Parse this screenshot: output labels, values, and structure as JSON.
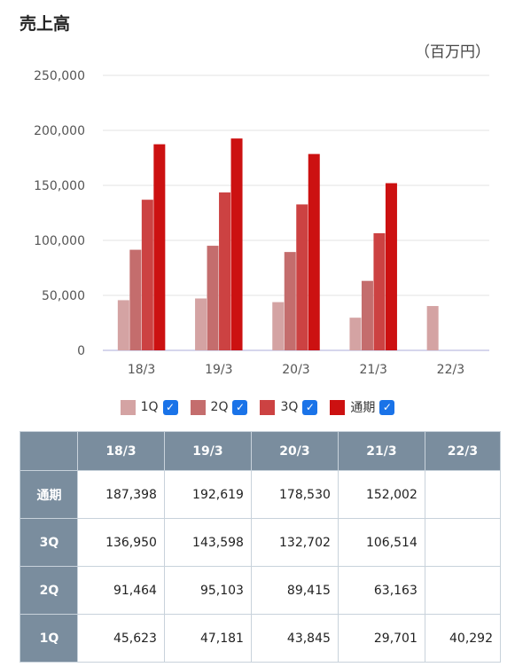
{
  "title": "売上高",
  "unit": "（百万円）",
  "chart_data": {
    "type": "bar",
    "categories": [
      "18/3",
      "19/3",
      "20/3",
      "21/3",
      "22/3"
    ],
    "series": [
      {
        "name": "1Q",
        "color": "#d4a3a3",
        "values": [
          45623,
          47181,
          43845,
          29701,
          40292
        ]
      },
      {
        "name": "2Q",
        "color": "#c46d6d",
        "values": [
          91464,
          95103,
          89415,
          63163,
          null
        ]
      },
      {
        "name": "3Q",
        "color": "#cc4242",
        "values": [
          136950,
          143598,
          132702,
          106514,
          null
        ]
      },
      {
        "name": "通期",
        "color": "#cc1111",
        "values": [
          187398,
          192619,
          178530,
          152002,
          null
        ]
      }
    ],
    "yticks": [
      "0",
      "50,000",
      "100,000",
      "150,000",
      "200,000",
      "250,000"
    ],
    "ylim": [
      0,
      250000
    ],
    "grid": true,
    "legend_position": "bottom"
  },
  "legend": [
    {
      "label": "1Q",
      "color": "#d4a3a3",
      "checked": true
    },
    {
      "label": "2Q",
      "color": "#c46d6d",
      "checked": true
    },
    {
      "label": "3Q",
      "color": "#cc4242",
      "checked": true
    },
    {
      "label": "通期",
      "color": "#cc1111",
      "checked": true
    }
  ],
  "checkbox_mark": "✓",
  "table": {
    "headers": [
      "18/3",
      "19/3",
      "20/3",
      "21/3",
      "22/3"
    ],
    "rows": [
      {
        "label": "通期",
        "values": [
          "187,398",
          "192,619",
          "178,530",
          "152,002",
          ""
        ]
      },
      {
        "label": "3Q",
        "values": [
          "136,950",
          "143,598",
          "132,702",
          "106,514",
          ""
        ]
      },
      {
        "label": "2Q",
        "values": [
          "91,464",
          "95,103",
          "89,415",
          "63,163",
          ""
        ]
      },
      {
        "label": "1Q",
        "values": [
          "45,623",
          "47,181",
          "43,845",
          "29,701",
          "40,292"
        ]
      }
    ]
  }
}
